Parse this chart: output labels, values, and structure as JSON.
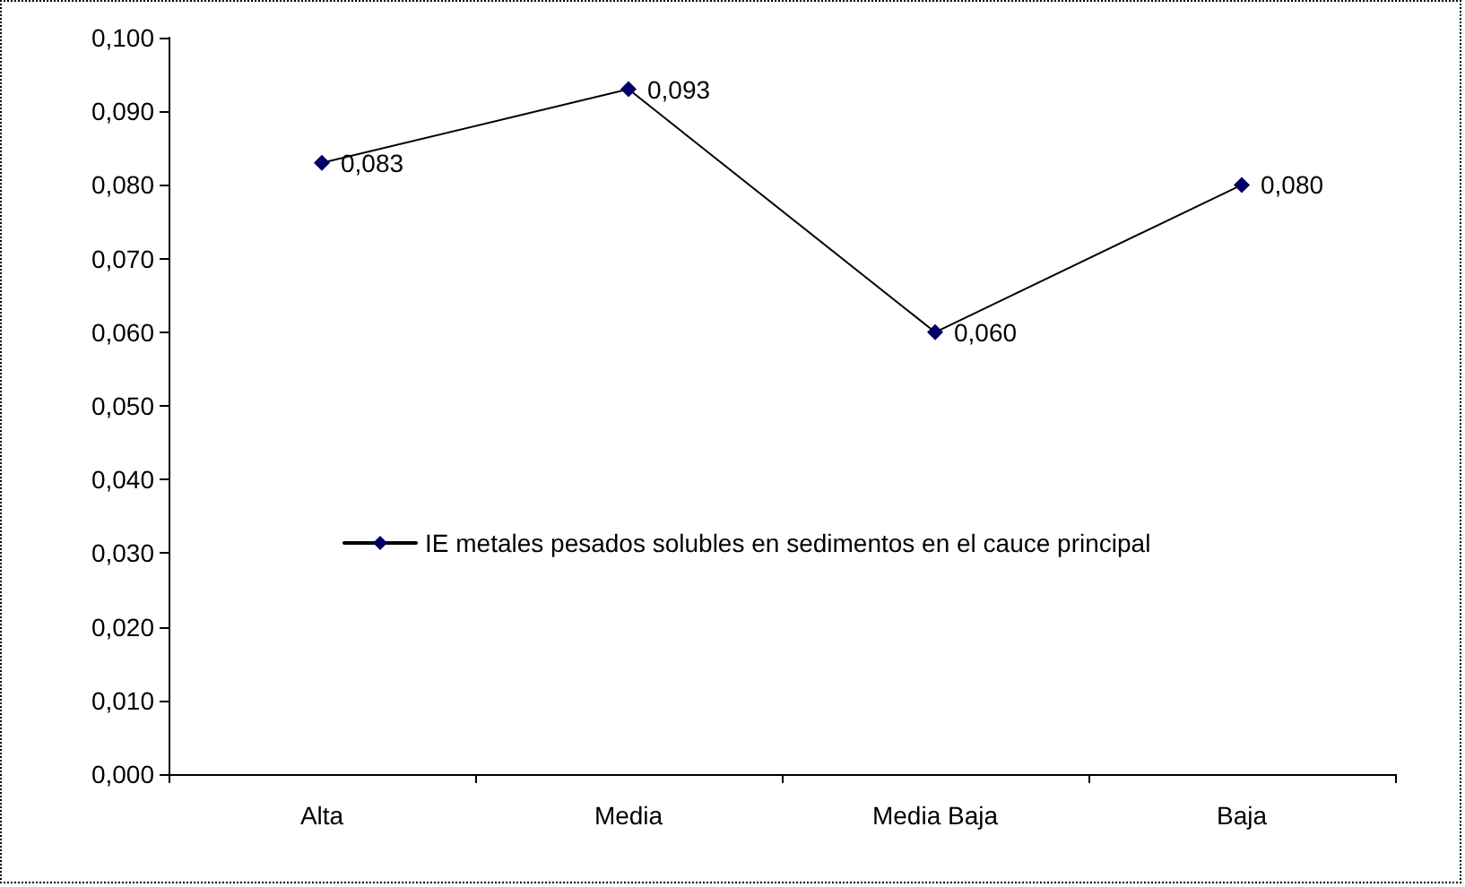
{
  "chart_data": {
    "type": "line",
    "categories": [
      "Alta",
      "Media",
      "Media Baja",
      "Baja"
    ],
    "series": [
      {
        "name": "IE metales pesados solubles en sedimentos en el cauce principal",
        "color": "#000066",
        "values": [
          0.083,
          0.093,
          0.06,
          0.08
        ],
        "value_labels": [
          "0,083",
          "0,093",
          "0,060",
          "0,080"
        ]
      }
    ],
    "ylim": [
      0,
      0.1
    ],
    "yticks": [
      {
        "value": 0,
        "label": "0,000"
      },
      {
        "value": 0.01,
        "label": "0,010"
      },
      {
        "value": 0.02,
        "label": "0,020"
      },
      {
        "value": 0.03,
        "label": "0,030"
      },
      {
        "value": 0.04,
        "label": "0,040"
      },
      {
        "value": 0.05,
        "label": "0,050"
      },
      {
        "value": 0.06,
        "label": "0,060"
      },
      {
        "value": 0.07,
        "label": "0,070"
      },
      {
        "value": 0.08,
        "label": "0,080"
      },
      {
        "value": 0.09,
        "label": "0,090"
      },
      {
        "value": 0.1,
        "label": "0,100"
      }
    ],
    "grid": false,
    "legend": "left",
    "marker": "diamond",
    "line_style": "solid"
  }
}
